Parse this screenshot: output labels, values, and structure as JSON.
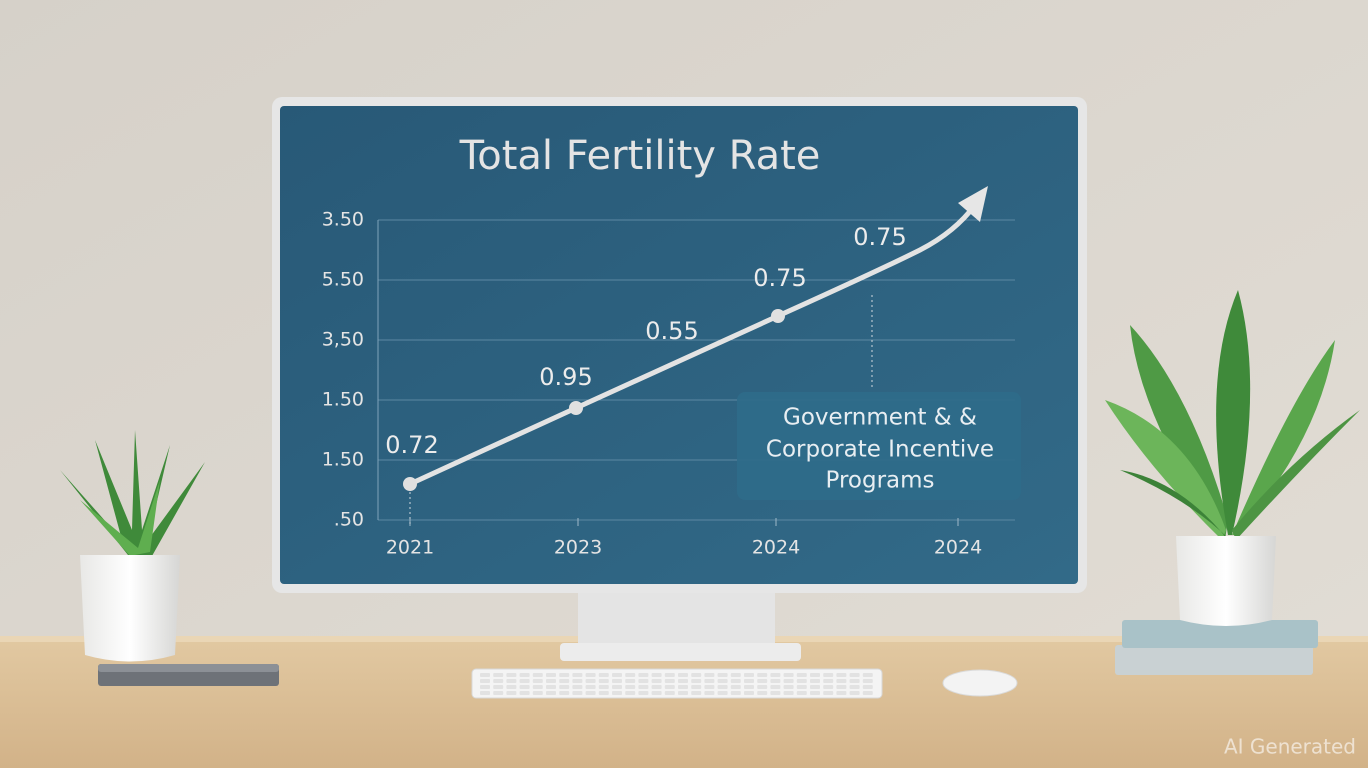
{
  "screen": {
    "title": "Total Fertility Rate",
    "y_axis_labels": [
      "3.50",
      "5.50",
      "3,50",
      "1.50",
      "1.50",
      ".50"
    ],
    "x_axis_labels": [
      "2021",
      "2023",
      "2024",
      "2024"
    ],
    "point_labels": [
      "0.72",
      "0.95",
      "0.55",
      "0.75",
      "0.75"
    ],
    "annotation": [
      "Government & &",
      "Corporate Incentive",
      "Programs"
    ]
  },
  "watermark": "AI Generated"
}
